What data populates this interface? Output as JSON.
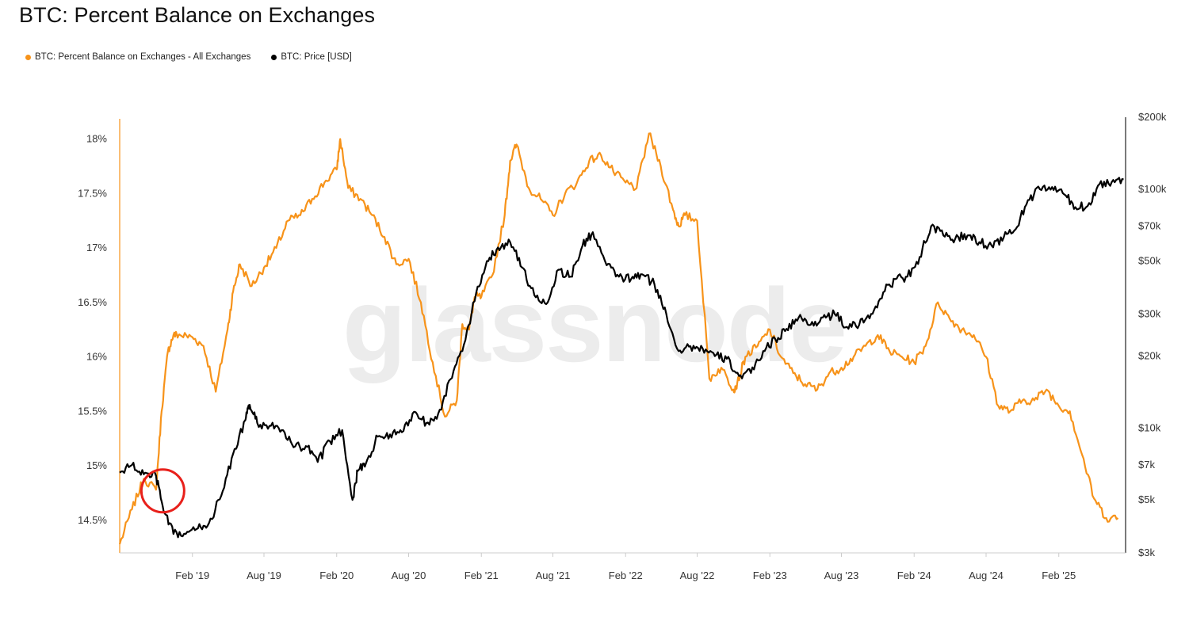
{
  "header": {
    "title": "BTC: Percent Balance on Exchanges"
  },
  "legend": {
    "items": [
      {
        "label": "BTC: Percent Balance on Exchanges - All Exchanges",
        "color": "#f7931a"
      },
      {
        "label": "BTC: Price [USD]",
        "color": "#000000"
      }
    ]
  },
  "watermark": "glassnode",
  "chart_data": {
    "type": "line",
    "title": "BTC: Percent Balance on Exchanges",
    "x_axis": {
      "ticks": [
        "Feb '19",
        "Aug '19",
        "Feb '20",
        "Aug '20",
        "Feb '21",
        "Aug '21",
        "Feb '22",
        "Aug '22",
        "Feb '23",
        "Aug '23",
        "Feb '24",
        "Aug '24",
        "Feb '25"
      ]
    },
    "y_left": {
      "ticks": [
        "18%",
        "17.5%",
        "17%",
        "16.5%",
        "16%",
        "15.5%",
        "15%",
        "14.5%"
      ],
      "range": [
        14.2,
        18.2
      ],
      "unit": "%"
    },
    "y_right": {
      "ticks": [
        "$200k",
        "$100k",
        "$70k",
        "$50k",
        "$30k",
        "$20k",
        "$10k",
        "$7k",
        "$5k",
        "$3k"
      ],
      "range": [
        3000,
        200000
      ],
      "scale": "log"
    },
    "series": [
      {
        "name": "BTC: Percent Balance on Exchanges - All Exchanges",
        "axis": "left",
        "color": "#f7931a",
        "x": [
          "2018-08-01",
          "2018-09-01",
          "2018-10-01",
          "2018-11-01",
          "2018-11-15",
          "2018-12-01",
          "2018-12-15",
          "2019-01-01",
          "2019-02-01",
          "2019-03-01",
          "2019-04-01",
          "2019-05-01",
          "2019-05-15",
          "2019-06-01",
          "2019-07-01",
          "2019-08-01",
          "2019-09-01",
          "2019-10-01",
          "2019-11-01",
          "2019-12-01",
          "2020-01-01",
          "2020-02-01",
          "2020-02-10",
          "2020-03-01",
          "2020-04-01",
          "2020-05-01",
          "2020-06-01",
          "2020-07-01",
          "2020-08-01",
          "2020-09-01",
          "2020-10-01",
          "2020-11-01",
          "2020-12-01",
          "2020-12-15",
          "2021-01-01",
          "2021-01-15",
          "2021-02-01",
          "2021-03-01",
          "2021-04-01",
          "2021-04-15",
          "2021-05-01",
          "2021-06-01",
          "2021-07-01",
          "2021-08-01",
          "2021-09-01",
          "2021-10-01",
          "2021-11-01",
          "2021-12-01",
          "2022-01-01",
          "2022-02-01",
          "2022-03-01",
          "2022-04-01",
          "2022-05-01",
          "2022-06-01",
          "2022-06-15",
          "2022-07-01",
          "2022-08-01",
          "2022-09-01",
          "2022-10-01",
          "2022-11-01",
          "2022-11-10",
          "2022-12-01",
          "2023-01-01",
          "2023-02-01",
          "2023-03-01",
          "2023-04-01",
          "2023-05-01",
          "2023-06-01",
          "2023-07-01",
          "2023-08-01",
          "2023-09-01",
          "2023-10-01",
          "2023-11-01",
          "2023-12-01",
          "2024-01-01",
          "2024-02-01",
          "2024-03-01",
          "2024-04-01",
          "2024-05-01",
          "2024-06-01",
          "2024-07-01",
          "2024-08-01",
          "2024-09-01",
          "2024-10-01",
          "2024-11-01",
          "2024-12-01",
          "2025-01-01",
          "2025-02-01",
          "2025-03-01",
          "2025-04-01",
          "2025-05-01",
          "2025-06-01",
          "2025-07-01"
        ],
        "values": [
          14.28,
          14.6,
          14.88,
          14.78,
          15.5,
          16.05,
          16.2,
          16.2,
          16.18,
          16.1,
          15.68,
          16.25,
          16.6,
          16.85,
          16.65,
          16.82,
          17.0,
          17.25,
          17.3,
          17.45,
          17.6,
          17.72,
          18.0,
          17.55,
          17.45,
          17.3,
          17.1,
          16.85,
          16.9,
          16.5,
          15.95,
          15.45,
          15.6,
          16.3,
          16.25,
          16.55,
          16.55,
          16.75,
          17.3,
          17.8,
          17.95,
          17.55,
          17.45,
          17.3,
          17.5,
          17.6,
          17.8,
          17.85,
          17.7,
          17.6,
          17.55,
          18.05,
          17.75,
          17.35,
          17.2,
          17.3,
          17.25,
          15.8,
          15.9,
          15.7,
          15.75,
          16.0,
          16.1,
          16.25,
          16.0,
          15.85,
          15.75,
          15.7,
          15.85,
          15.9,
          16.0,
          16.1,
          16.2,
          16.05,
          16.0,
          15.95,
          16.1,
          16.5,
          16.35,
          16.25,
          16.2,
          16.0,
          15.55,
          15.5,
          15.6,
          15.6,
          15.7,
          15.55,
          15.5,
          15.1,
          14.7,
          14.52,
          14.52
        ]
      },
      {
        "name": "BTC: Price [USD]",
        "axis": "right",
        "color": "#000000",
        "x": [
          "2018-08-01",
          "2018-09-01",
          "2018-10-01",
          "2018-11-01",
          "2018-11-20",
          "2018-12-15",
          "2019-01-15",
          "2019-02-15",
          "2019-03-15",
          "2019-04-15",
          "2019-05-15",
          "2019-06-15",
          "2019-06-26",
          "2019-07-15",
          "2019-08-15",
          "2019-09-15",
          "2019-10-15",
          "2019-11-15",
          "2019-12-15",
          "2020-01-15",
          "2020-02-15",
          "2020-03-12",
          "2020-03-25",
          "2020-04-15",
          "2020-05-15",
          "2020-06-15",
          "2020-07-15",
          "2020-08-15",
          "2020-09-15",
          "2020-10-15",
          "2020-11-15",
          "2020-12-15",
          "2021-01-15",
          "2021-02-15",
          "2021-03-15",
          "2021-04-15",
          "2021-05-15",
          "2021-06-15",
          "2021-07-15",
          "2021-08-15",
          "2021-09-15",
          "2021-10-15",
          "2021-11-10",
          "2021-12-15",
          "2022-01-15",
          "2022-02-15",
          "2022-03-15",
          "2022-04-15",
          "2022-05-15",
          "2022-06-15",
          "2022-07-15",
          "2022-08-15",
          "2022-09-15",
          "2022-10-15",
          "2022-11-15",
          "2022-12-15",
          "2023-01-15",
          "2023-02-15",
          "2023-03-15",
          "2023-04-15",
          "2023-05-15",
          "2023-06-15",
          "2023-07-15",
          "2023-08-15",
          "2023-09-15",
          "2023-10-15",
          "2023-11-15",
          "2023-12-15",
          "2024-01-15",
          "2024-02-15",
          "2024-03-15",
          "2024-04-15",
          "2024-05-15",
          "2024-06-15",
          "2024-07-15",
          "2024-08-15",
          "2024-09-15",
          "2024-10-15",
          "2024-11-15",
          "2024-12-15",
          "2025-01-15",
          "2025-02-15",
          "2025-03-15",
          "2025-04-15",
          "2025-05-15",
          "2025-06-15",
          "2025-07-15"
        ],
        "values": [
          6500,
          7000,
          6400,
          6300,
          4500,
          3600,
          3600,
          3800,
          4000,
          5200,
          7800,
          10800,
          12500,
          10500,
          10200,
          9800,
          8300,
          8400,
          7200,
          8800,
          9800,
          5000,
          6600,
          7100,
          9200,
          9400,
          9600,
          11700,
          10500,
          11500,
          16000,
          21000,
          34000,
          50000,
          57000,
          60000,
          47000,
          36000,
          33000,
          46000,
          43000,
          58000,
          66000,
          48000,
          43000,
          42000,
          44000,
          40000,
          30000,
          21000,
          22000,
          21500,
          20000,
          19500,
          16500,
          17000,
          21000,
          23500,
          26000,
          29000,
          27000,
          29000,
          30000,
          26500,
          27000,
          30000,
          37000,
          42000,
          43000,
          52000,
          70000,
          64000,
          62000,
          64000,
          60000,
          58000,
          63000,
          68000,
          90000,
          100000,
          102000,
          95000,
          84000,
          85000,
          105000,
          107000,
          110000
        ]
      }
    ],
    "annotations": [
      {
        "type": "circle",
        "color": "#e8201b",
        "x": "2018-11-18",
        "y": 14.9,
        "axis": "left"
      }
    ],
    "grid": false,
    "legend_position": "top-left"
  }
}
